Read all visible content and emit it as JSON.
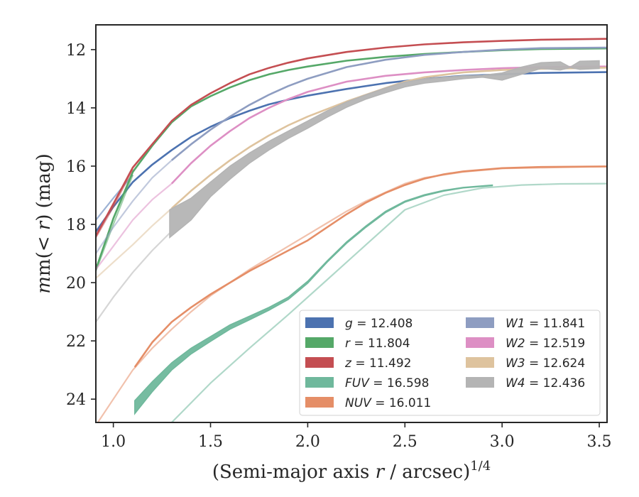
{
  "chart_data": {
    "type": "line",
    "xlabel_main": "(Semi-major axis ",
    "xlabel_var": "r",
    "xlabel_rest": " / arcsec)",
    "xlabel_sup": "1/4",
    "ylabel_pre": "m(< ",
    "ylabel_var": "r",
    "ylabel_post": ") (mag)",
    "xlim": [
      0.91,
      3.54
    ],
    "ylim": [
      24.8,
      11.15
    ],
    "y_inverted": true,
    "xticks": [
      1.0,
      1.5,
      2.0,
      2.5,
      3.0,
      3.5
    ],
    "xtick_labels": [
      "1.0",
      "1.5",
      "2.0",
      "2.5",
      "3.0",
      "3.5"
    ],
    "yticks": [
      12,
      14,
      16,
      18,
      20,
      22,
      24
    ],
    "ytick_labels": [
      "12",
      "14",
      "16",
      "18",
      "20",
      "22",
      "24"
    ],
    "legend_position": "lower-right",
    "legend_columns": 2,
    "series": [
      {
        "name": "g",
        "value": "12.408",
        "color": "#4c72b0",
        "faint": [
          [
            0.91,
            17.85
          ],
          [
            1.0,
            17.1
          ],
          [
            1.1,
            16.3
          ]
        ],
        "main": [
          [
            0.91,
            18.25
          ],
          [
            1.0,
            17.4
          ],
          [
            1.1,
            16.55
          ],
          [
            1.2,
            15.95
          ],
          [
            1.3,
            15.45
          ],
          [
            1.4,
            15.0
          ],
          [
            1.5,
            14.65
          ],
          [
            1.6,
            14.35
          ],
          [
            1.7,
            14.1
          ],
          [
            1.8,
            13.88
          ],
          [
            1.9,
            13.72
          ],
          [
            2.0,
            13.58
          ],
          [
            2.2,
            13.35
          ],
          [
            2.4,
            13.15
          ],
          [
            2.6,
            13.0
          ],
          [
            2.8,
            12.9
          ],
          [
            3.0,
            12.85
          ],
          [
            3.2,
            12.8
          ],
          [
            3.54,
            12.77
          ]
        ]
      },
      {
        "name": "r",
        "value": "11.804",
        "color": "#55a868",
        "faint": [
          [
            0.91,
            19.6
          ],
          [
            1.0,
            18.0
          ],
          [
            1.1,
            16.3
          ]
        ],
        "main": [
          [
            0.91,
            19.55
          ],
          [
            1.0,
            17.8
          ],
          [
            1.1,
            16.2
          ],
          [
            1.2,
            15.3
          ],
          [
            1.3,
            14.5
          ],
          [
            1.4,
            13.95
          ],
          [
            1.5,
            13.6
          ],
          [
            1.6,
            13.3
          ],
          [
            1.7,
            13.05
          ],
          [
            1.8,
            12.85
          ],
          [
            1.9,
            12.7
          ],
          [
            2.0,
            12.58
          ],
          [
            2.2,
            12.38
          ],
          [
            2.4,
            12.25
          ],
          [
            2.6,
            12.15
          ],
          [
            2.8,
            12.08
          ],
          [
            3.0,
            12.02
          ],
          [
            3.2,
            11.98
          ],
          [
            3.54,
            11.96
          ]
        ]
      },
      {
        "name": "z",
        "value": "11.492",
        "color": "#c44e52",
        "faint": [
          [
            0.91,
            18.45
          ],
          [
            1.0,
            17.4
          ],
          [
            1.1,
            16.1
          ]
        ],
        "main": [
          [
            0.91,
            18.4
          ],
          [
            1.0,
            17.3
          ],
          [
            1.1,
            16.05
          ],
          [
            1.2,
            15.25
          ],
          [
            1.3,
            14.45
          ],
          [
            1.4,
            13.9
          ],
          [
            1.5,
            13.5
          ],
          [
            1.6,
            13.15
          ],
          [
            1.7,
            12.85
          ],
          [
            1.8,
            12.63
          ],
          [
            1.9,
            12.45
          ],
          [
            2.0,
            12.3
          ],
          [
            2.2,
            12.08
          ],
          [
            2.4,
            11.93
          ],
          [
            2.6,
            11.82
          ],
          [
            2.8,
            11.75
          ],
          [
            3.0,
            11.7
          ],
          [
            3.2,
            11.66
          ],
          [
            3.54,
            11.63
          ]
        ]
      },
      {
        "name": "FUV",
        "value": "16.598",
        "color": "#6fb89c",
        "faint": [
          [
            1.3,
            24.8
          ],
          [
            1.5,
            23.45
          ],
          [
            1.7,
            22.25
          ],
          [
            1.9,
            21.1
          ],
          [
            2.1,
            19.9
          ],
          [
            2.3,
            18.7
          ],
          [
            2.5,
            17.5
          ],
          [
            2.7,
            17.0
          ],
          [
            2.9,
            16.75
          ],
          [
            3.1,
            16.65
          ],
          [
            3.3,
            16.61
          ],
          [
            3.54,
            16.6
          ]
        ],
        "main_top": [
          [
            1.11,
            24.05
          ],
          [
            1.2,
            23.4
          ],
          [
            1.3,
            22.75
          ],
          [
            1.4,
            22.25
          ],
          [
            1.5,
            21.85
          ],
          [
            1.6,
            21.45
          ],
          [
            1.7,
            21.15
          ],
          [
            1.8,
            20.85
          ],
          [
            1.9,
            20.5
          ],
          [
            2.0,
            19.95
          ],
          [
            2.1,
            19.25
          ],
          [
            2.2,
            18.6
          ],
          [
            2.3,
            18.05
          ],
          [
            2.4,
            17.55
          ],
          [
            2.5,
            17.2
          ],
          [
            2.6,
            16.98
          ],
          [
            2.7,
            16.83
          ],
          [
            2.8,
            16.73
          ],
          [
            2.95,
            16.65
          ]
        ],
        "main_bottom": [
          [
            1.11,
            24.5
          ],
          [
            1.2,
            23.75
          ],
          [
            1.3,
            23.0
          ],
          [
            1.4,
            22.45
          ],
          [
            1.5,
            22.02
          ],
          [
            1.6,
            21.6
          ],
          [
            1.7,
            21.28
          ],
          [
            1.8,
            20.95
          ],
          [
            1.9,
            20.58
          ],
          [
            2.0,
            20.02
          ],
          [
            2.1,
            19.3
          ],
          [
            2.2,
            18.65
          ],
          [
            2.3,
            18.1
          ],
          [
            2.4,
            17.6
          ],
          [
            2.5,
            17.24
          ],
          [
            2.6,
            17.02
          ],
          [
            2.7,
            16.86
          ],
          [
            2.8,
            16.75
          ],
          [
            2.95,
            16.67
          ]
        ]
      },
      {
        "name": "NUV",
        "value": "16.011",
        "color": "#e58e67",
        "faint": [
          [
            0.91,
            24.9
          ],
          [
            1.0,
            24.0
          ],
          [
            1.1,
            23.0
          ],
          [
            1.2,
            22.25
          ],
          [
            1.3,
            21.6
          ],
          [
            1.4,
            21.0
          ],
          [
            1.5,
            20.45
          ],
          [
            1.6,
            20.0
          ],
          [
            1.7,
            19.55
          ],
          [
            1.8,
            19.15
          ],
          [
            1.9,
            18.75
          ],
          [
            2.0,
            18.35
          ],
          [
            2.1,
            17.95
          ],
          [
            2.2,
            17.55
          ],
          [
            2.3,
            17.2
          ],
          [
            2.4,
            16.9
          ],
          [
            2.5,
            16.6
          ],
          [
            2.6,
            16.4
          ],
          [
            2.8,
            16.2
          ],
          [
            3.0,
            16.08
          ],
          [
            3.54,
            16.01
          ]
        ],
        "main": [
          [
            1.11,
            22.9
          ],
          [
            1.2,
            22.05
          ],
          [
            1.3,
            21.35
          ],
          [
            1.4,
            20.85
          ],
          [
            1.5,
            20.4
          ],
          [
            1.6,
            20.0
          ],
          [
            1.7,
            19.6
          ],
          [
            1.8,
            19.25
          ],
          [
            1.9,
            18.9
          ],
          [
            2.0,
            18.55
          ],
          [
            2.1,
            18.1
          ],
          [
            2.2,
            17.65
          ],
          [
            2.3,
            17.25
          ],
          [
            2.4,
            16.92
          ],
          [
            2.5,
            16.65
          ],
          [
            2.6,
            16.43
          ],
          [
            2.7,
            16.28
          ],
          [
            2.8,
            16.18
          ],
          [
            3.0,
            16.07
          ],
          [
            3.2,
            16.03
          ],
          [
            3.54,
            16.01
          ]
        ]
      },
      {
        "name": "W1",
        "value": "11.841",
        "color": "#8e9dc1",
        "faint": [
          [
            0.91,
            19.0
          ],
          [
            1.0,
            18.1
          ],
          [
            1.1,
            17.2
          ],
          [
            1.2,
            16.4
          ],
          [
            1.3,
            15.8
          ]
        ],
        "main": [
          [
            1.3,
            15.8
          ],
          [
            1.4,
            15.25
          ],
          [
            1.5,
            14.75
          ],
          [
            1.6,
            14.3
          ],
          [
            1.7,
            13.9
          ],
          [
            1.8,
            13.55
          ],
          [
            1.9,
            13.25
          ],
          [
            2.0,
            13.0
          ],
          [
            2.2,
            12.6
          ],
          [
            2.4,
            12.35
          ],
          [
            2.6,
            12.18
          ],
          [
            2.8,
            12.08
          ],
          [
            3.0,
            12.0
          ],
          [
            3.2,
            11.95
          ],
          [
            3.54,
            11.93
          ]
        ]
      },
      {
        "name": "W2",
        "value": "12.519",
        "color": "#dd8fc4",
        "faint": [
          [
            0.91,
            19.55
          ],
          [
            1.0,
            18.75
          ],
          [
            1.1,
            17.85
          ],
          [
            1.2,
            17.15
          ],
          [
            1.3,
            16.6
          ]
        ],
        "main": [
          [
            1.3,
            16.6
          ],
          [
            1.4,
            15.9
          ],
          [
            1.5,
            15.3
          ],
          [
            1.6,
            14.8
          ],
          [
            1.7,
            14.35
          ],
          [
            1.8,
            14.0
          ],
          [
            1.9,
            13.7
          ],
          [
            2.0,
            13.45
          ],
          [
            2.2,
            13.1
          ],
          [
            2.4,
            12.9
          ],
          [
            2.6,
            12.78
          ],
          [
            2.8,
            12.7
          ],
          [
            3.0,
            12.64
          ],
          [
            3.2,
            12.6
          ],
          [
            3.54,
            12.58
          ]
        ]
      },
      {
        "name": "W3",
        "value": "12.624",
        "color": "#dec39e",
        "faint": [
          [
            0.91,
            19.85
          ],
          [
            1.0,
            19.3
          ],
          [
            1.1,
            18.7
          ],
          [
            1.2,
            18.05
          ],
          [
            1.3,
            17.45
          ]
        ],
        "main": [
          [
            1.3,
            17.45
          ],
          [
            1.4,
            16.85
          ],
          [
            1.5,
            16.3
          ],
          [
            1.6,
            15.8
          ],
          [
            1.7,
            15.35
          ],
          [
            1.8,
            14.95
          ],
          [
            1.9,
            14.6
          ],
          [
            2.0,
            14.3
          ],
          [
            2.2,
            13.78
          ],
          [
            2.4,
            13.32
          ],
          [
            2.5,
            13.1
          ],
          [
            2.6,
            12.95
          ],
          [
            2.8,
            12.78
          ],
          [
            3.0,
            12.7
          ],
          [
            3.2,
            12.66
          ],
          [
            3.54,
            12.62
          ]
        ]
      },
      {
        "name": "W4",
        "value": "12.436",
        "color": "#b4b4b4",
        "faint": [
          [
            0.91,
            21.35
          ],
          [
            1.0,
            20.5
          ],
          [
            1.1,
            19.65
          ],
          [
            1.2,
            18.9
          ],
          [
            1.29,
            18.3
          ]
        ],
        "main_top": [
          [
            1.29,
            17.5
          ],
          [
            1.4,
            17.1
          ],
          [
            1.5,
            16.55
          ],
          [
            1.6,
            16.0
          ],
          [
            1.7,
            15.55
          ],
          [
            1.8,
            15.15
          ],
          [
            1.9,
            14.8
          ],
          [
            2.0,
            14.45
          ],
          [
            2.1,
            14.1
          ],
          [
            2.2,
            13.8
          ],
          [
            2.3,
            13.55
          ],
          [
            2.4,
            13.32
          ],
          [
            2.5,
            13.12
          ],
          [
            2.6,
            13.0
          ],
          [
            2.7,
            12.95
          ],
          [
            2.8,
            12.9
          ],
          [
            2.9,
            12.88
          ],
          [
            3.0,
            12.8
          ],
          [
            3.1,
            12.6
          ],
          [
            3.2,
            12.45
          ],
          [
            3.3,
            12.42
          ],
          [
            3.35,
            12.6
          ],
          [
            3.4,
            12.4
          ],
          [
            3.5,
            12.38
          ]
        ],
        "main_bottom": [
          [
            1.29,
            18.45
          ],
          [
            1.4,
            17.85
          ],
          [
            1.5,
            17.05
          ],
          [
            1.6,
            16.45
          ],
          [
            1.7,
            15.9
          ],
          [
            1.8,
            15.45
          ],
          [
            1.9,
            15.05
          ],
          [
            2.0,
            14.7
          ],
          [
            2.1,
            14.32
          ],
          [
            2.2,
            13.98
          ],
          [
            2.3,
            13.7
          ],
          [
            2.4,
            13.48
          ],
          [
            2.5,
            13.28
          ],
          [
            2.6,
            13.15
          ],
          [
            2.7,
            13.08
          ],
          [
            2.8,
            13.0
          ],
          [
            2.9,
            12.95
          ],
          [
            3.0,
            13.05
          ],
          [
            3.1,
            12.85
          ],
          [
            3.2,
            12.65
          ],
          [
            3.3,
            12.7
          ],
          [
            3.35,
            12.62
          ],
          [
            3.4,
            12.68
          ],
          [
            3.5,
            12.65
          ]
        ]
      }
    ]
  }
}
